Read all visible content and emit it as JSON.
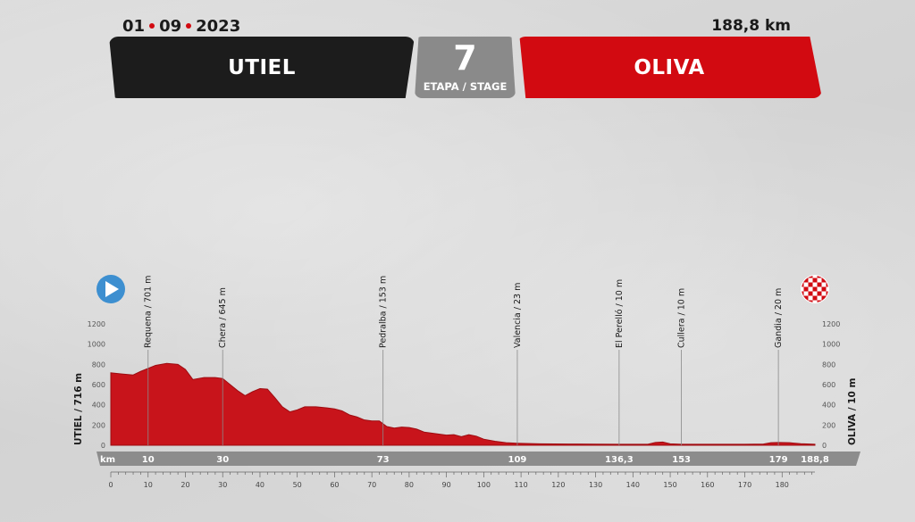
{
  "header": {
    "date_day": "01",
    "date_month": "09",
    "date_year": "2023",
    "distance": "188,8 km",
    "start_city": "UTIEL",
    "finish_city": "OLIVA",
    "stage_number": "7",
    "stage_label": "ETAPA / STAGE"
  },
  "colors": {
    "start_banner": "#1c1c1c",
    "finish_banner": "#d20a11",
    "stage_box": "#8a8a8a",
    "profile_fill": "#c8141b",
    "date_dot": "#d20a11",
    "km_band": "#8c8c8c",
    "start_icon": "#3d8fd0"
  },
  "icons": {
    "start": "play-circle-icon",
    "finish": "checkered-flag-icon"
  },
  "chart_data": {
    "type": "area",
    "title": "",
    "xlabel": "",
    "ylabel": "",
    "xlim": [
      0,
      188.8
    ],
    "ylim": [
      0,
      1200
    ],
    "x_ticks": [
      0,
      10,
      20,
      30,
      40,
      50,
      60,
      70,
      80,
      90,
      100,
      110,
      120,
      130,
      140,
      150,
      160,
      170,
      180
    ],
    "y_ticks": [
      0,
      200,
      400,
      600,
      800,
      1000,
      1200
    ],
    "km_band_label": "km",
    "km_markers": [
      {
        "km": 10,
        "label": "10"
      },
      {
        "km": 30,
        "label": "30"
      },
      {
        "km": 73,
        "label": "73"
      },
      {
        "km": 109,
        "label": "109"
      },
      {
        "km": 136.3,
        "label": "136,3"
      },
      {
        "km": 153,
        "label": "153"
      },
      {
        "km": 179,
        "label": "179"
      },
      {
        "km": 188.8,
        "label": "188,8"
      }
    ],
    "waypoints": [
      {
        "km": 10,
        "label": "Requena / 701 m"
      },
      {
        "km": 30,
        "label": "Chera / 645 m"
      },
      {
        "km": 73,
        "label": "Pedralba / 153 m"
      },
      {
        "km": 109,
        "label": "Valencia / 23 m"
      },
      {
        "km": 136.3,
        "label": "El Perelló / 10 m"
      },
      {
        "km": 153,
        "label": "Cullera / 10 m"
      },
      {
        "km": 179,
        "label": "Gandia / 20 m"
      }
    ],
    "start_label": "UTIEL / 716 m",
    "finish_label": "OLIVA / 10 m",
    "series": [
      {
        "x": [
          0,
          3,
          6,
          8,
          10,
          12,
          15,
          18,
          20,
          22,
          25,
          28,
          30,
          32,
          34,
          36,
          38,
          40,
          42,
          44,
          46,
          48,
          50,
          52,
          55,
          58,
          60,
          62,
          64,
          66,
          68,
          70,
          72,
          74,
          76,
          78,
          80,
          82,
          84,
          86,
          88,
          90,
          92,
          94,
          96,
          98,
          100,
          103,
          106,
          109,
          115,
          125,
          130,
          136.3,
          144,
          146,
          148,
          150,
          153,
          160,
          170,
          175,
          177,
          179,
          182,
          185,
          188.8
        ],
        "y": [
          716,
          705,
          695,
          730,
          760,
          790,
          810,
          800,
          750,
          650,
          670,
          670,
          660,
          600,
          540,
          490,
          530,
          560,
          555,
          470,
          380,
          330,
          350,
          380,
          380,
          370,
          360,
          340,
          300,
          280,
          250,
          240,
          240,
          185,
          170,
          180,
          175,
          160,
          130,
          120,
          110,
          100,
          105,
          85,
          105,
          90,
          60,
          40,
          25,
          20,
          14,
          12,
          11,
          10,
          10,
          28,
          32,
          14,
          10,
          10,
          10,
          12,
          25,
          28,
          25,
          15,
          10
        ]
      }
    ]
  }
}
